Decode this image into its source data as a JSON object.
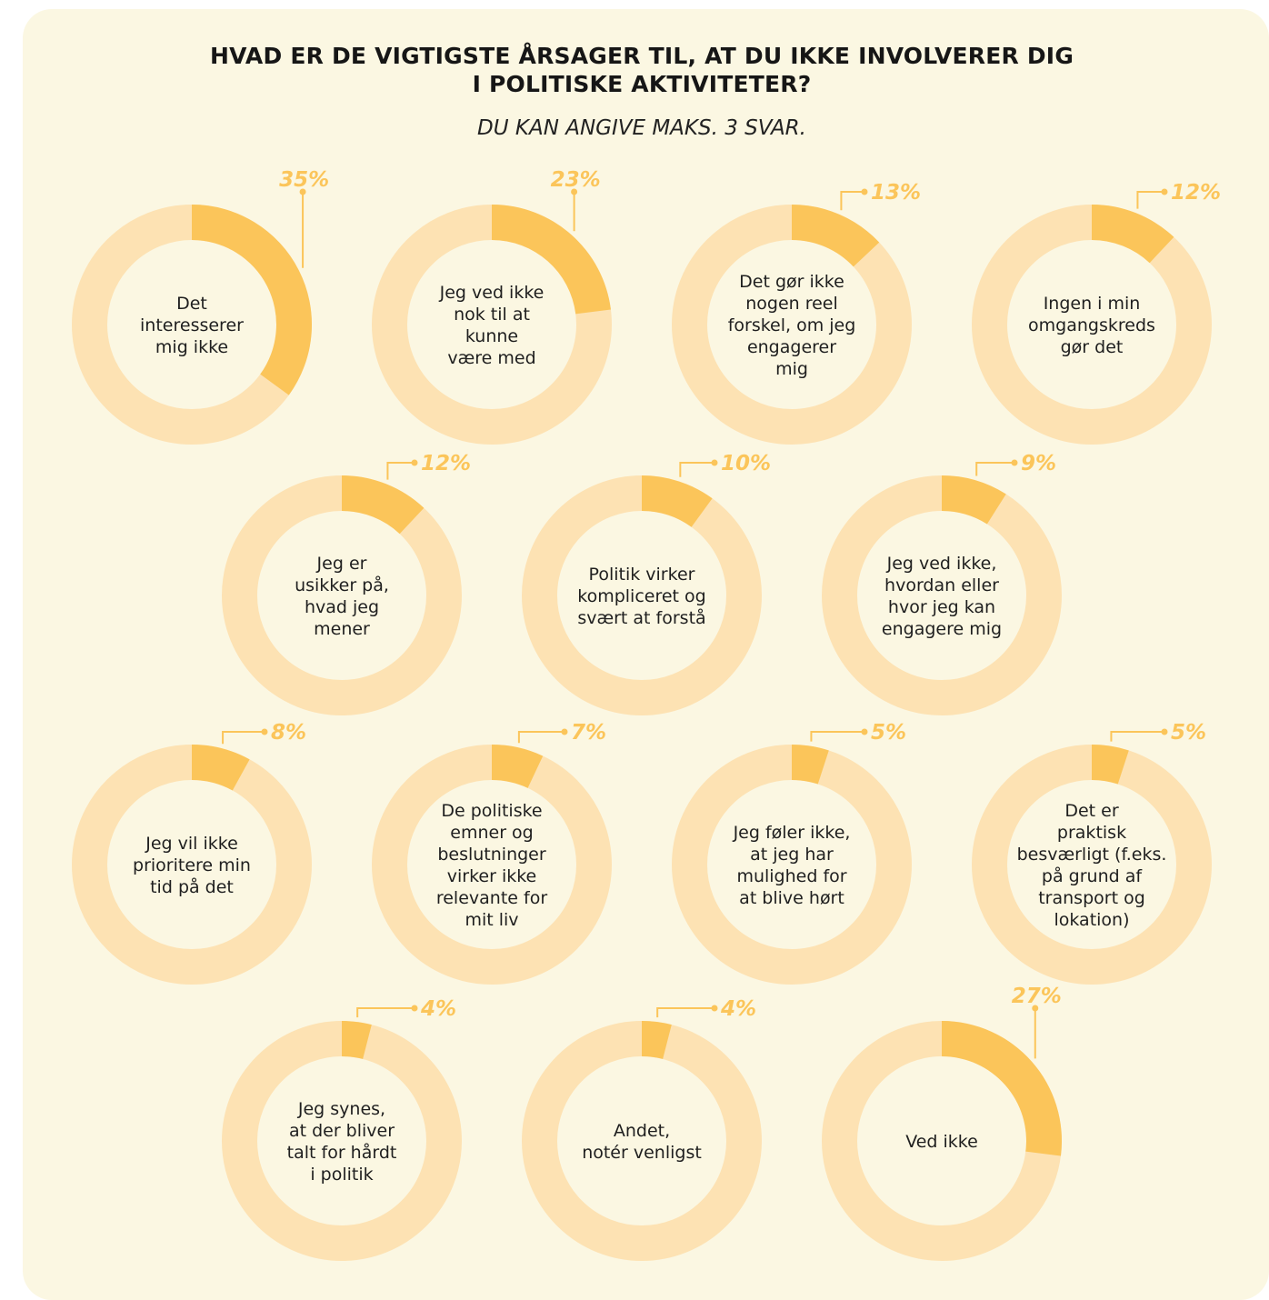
{
  "title_lines": [
    "HVAD ER DE VIGTIGSTE ÅRSAGER TIL, AT DU IKKE INVOLVERER DIG",
    "I POLITISKE AKTIVITETER?"
  ],
  "subtitle": "DU KAN ANGIVE MAKS. 3 SVAR.",
  "colors": {
    "background": "#fbf7e2",
    "ring": "#fde2b3",
    "highlight": "#fbc55a",
    "text": "#1f1f1f"
  },
  "chart_data": {
    "type": "donut",
    "unit": "%",
    "items": [
      {
        "label": [
          "Det",
          "interesserer",
          "mig ikke"
        ],
        "value": 35,
        "value_label": "35%"
      },
      {
        "label": [
          "Jeg ved ikke",
          "nok til at",
          "kunne",
          "være med"
        ],
        "value": 23,
        "value_label": "23%"
      },
      {
        "label": [
          "Det gør ikke",
          "nogen reel",
          "forskel, om jeg",
          "engagerer",
          "mig"
        ],
        "value": 13,
        "value_label": "13%"
      },
      {
        "label": [
          "Ingen i min",
          "omgangskreds",
          "gør det"
        ],
        "value": 12,
        "value_label": "12%"
      },
      {
        "label": [
          "Jeg er",
          "usikker på,",
          "hvad jeg",
          "mener"
        ],
        "value": 12,
        "value_label": "12%"
      },
      {
        "label": [
          "Politik virker",
          "kompliceret og",
          "svært at forstå"
        ],
        "value": 10,
        "value_label": "10%"
      },
      {
        "label": [
          "Jeg ved ikke,",
          "hvordan eller",
          "hvor jeg kan",
          "engagere mig"
        ],
        "value": 9,
        "value_label": "9%"
      },
      {
        "label": [
          "Jeg vil ikke",
          "prioritere min",
          "tid på det"
        ],
        "value": 8,
        "value_label": "8%"
      },
      {
        "label": [
          "De politiske",
          "emner og",
          "beslutninger",
          "virker ikke",
          "relevante for",
          "mit liv"
        ],
        "value": 7,
        "value_label": "7%"
      },
      {
        "label": [
          "Jeg føler ikke,",
          "at jeg har",
          "mulighed for",
          "at blive hørt"
        ],
        "value": 5,
        "value_label": "5%"
      },
      {
        "label": [
          "Det er",
          "praktisk",
          "besværligt (f.eks.",
          "på grund af",
          "transport og",
          "lokation)"
        ],
        "value": 5,
        "value_label": "5%"
      },
      {
        "label": [
          "Jeg synes,",
          "at der bliver",
          "talt for hårdt",
          "i politik"
        ],
        "value": 4,
        "value_label": "4%"
      },
      {
        "label": [
          "Andet,",
          "notér venligst"
        ],
        "value": 4,
        "value_label": "4%"
      },
      {
        "label": [
          "Ved ikke"
        ],
        "value": 27,
        "value_label": "27%"
      }
    ]
  }
}
